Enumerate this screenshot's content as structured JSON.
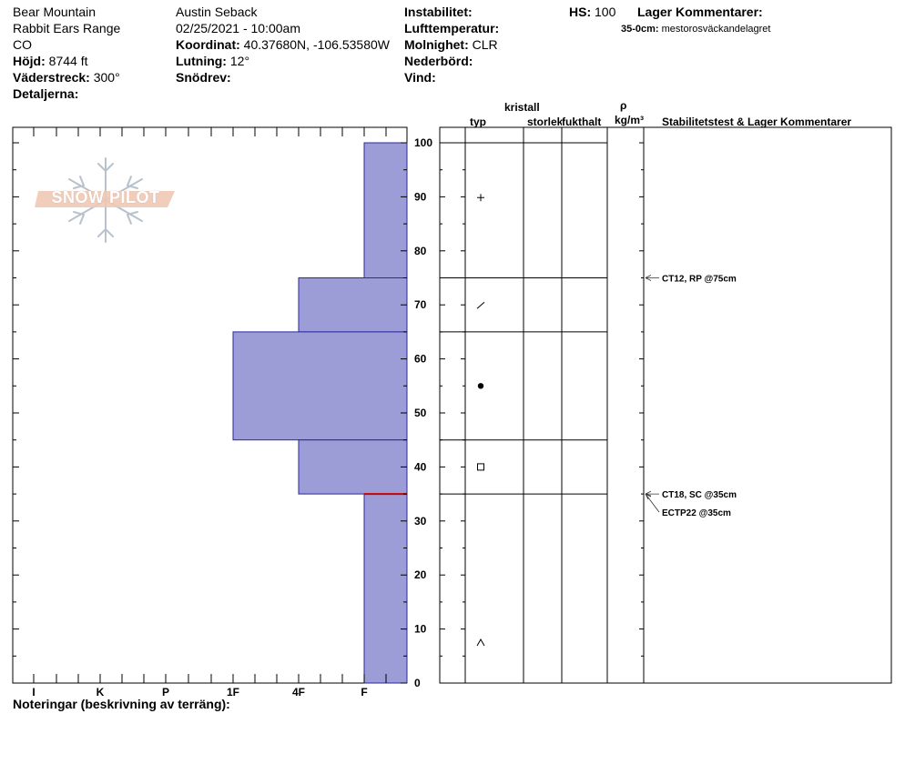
{
  "header": {
    "location": "Bear Mountain",
    "range": "Rabbit Ears Range",
    "state": "CO",
    "elevation_label": "Höjd:",
    "elevation_value": "8744 ft",
    "aspect_label": "Väderstreck:",
    "aspect_value": "300°",
    "details_label": "Detaljerna:",
    "observer": "Austin Seback",
    "datetime": "02/25/2021 - 10:00am",
    "coord_label": "Koordinat:",
    "coord_value": "40.37680N, -106.53580W",
    "slope_label": "Lutning:",
    "slope_value": "12°",
    "wind_loading_label": "Snödrev:",
    "instability_label": "Instabilitet:",
    "air_temp_label": "Lufttemperatur:",
    "sky_label": "Molnighet:",
    "sky_value": "CLR",
    "precip_label": "Nederbörd:",
    "wind_label": "Vind:",
    "hs_label": "HS:",
    "hs_value": "100",
    "layer_comments_label": "Lager Kommentarer:",
    "layer_comment_range": "35-0cm:",
    "layer_comment_text": "mestorosväckandelagret"
  },
  "logo": {
    "text": "SNOW PILOT"
  },
  "columns": {
    "type": "typ",
    "crystal": "kristall",
    "size": "storlek",
    "moisture": "fukthalt",
    "rho": "ρ",
    "density_unit": "kg/m³",
    "stability": "Stabilitetstest & Lager Kommentarer"
  },
  "footer": {
    "notes_label": "Noteringar (beskrivning av terräng):"
  },
  "chart_data": {
    "type": "snow_profile",
    "height_axis": {
      "min": 0,
      "max": 100,
      "major_ticks": [
        0,
        10,
        20,
        30,
        40,
        50,
        60,
        70,
        80,
        90,
        100
      ],
      "minor_step": 5
    },
    "hardness_scale": [
      "I",
      "K",
      "P",
      "1F",
      "4F",
      "F"
    ],
    "layers": [
      {
        "top": 100,
        "bottom": 75,
        "hardness": "F",
        "grain": "+"
      },
      {
        "top": 75,
        "bottom": 65,
        "hardness": "4F",
        "grain": "/"
      },
      {
        "top": 65,
        "bottom": 45,
        "hardness": "1F",
        "grain": "●"
      },
      {
        "top": 45,
        "bottom": 35,
        "hardness": "4F",
        "grain": "□"
      },
      {
        "top": 35,
        "bottom": 0,
        "hardness": "F",
        "grain": "^"
      }
    ],
    "weak_layer": 35,
    "stability_tests": [
      {
        "depth": 75,
        "label": "CT12, RP @75cm"
      },
      {
        "depth": 35,
        "label": "CT18, SC @35cm"
      },
      {
        "depth": 35,
        "label": "ECTP22 @35cm"
      }
    ],
    "colors": {
      "layer_fill": "#9c9cd6",
      "layer_stroke": "#2a2a9c",
      "weak_layer": "#cc0000"
    }
  }
}
